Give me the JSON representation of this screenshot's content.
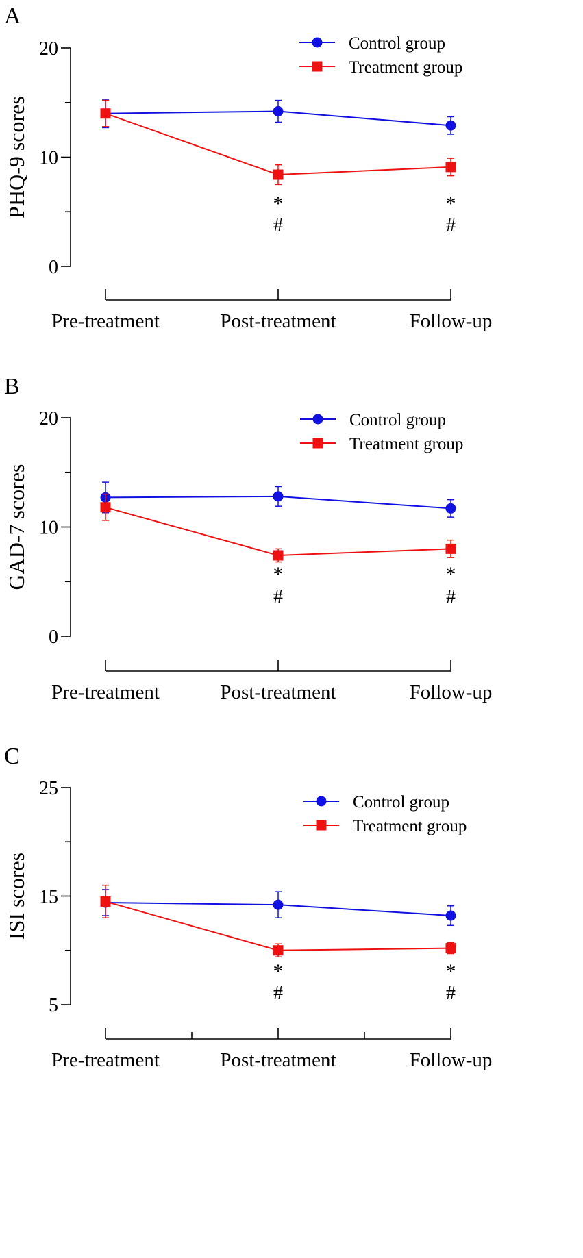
{
  "chart_data": [
    {
      "panel_label": "A",
      "type": "line",
      "ylabel": "PHQ-9 scores",
      "ylim": [
        0,
        20
      ],
      "yticks": [
        0,
        10,
        20
      ],
      "categories": [
        "Pre-treatment",
        "Post-treatment",
        "Follow-up"
      ],
      "series": [
        {
          "name": "Control group",
          "color": "#1010e0",
          "marker": "circle",
          "values": [
            14.0,
            14.2,
            12.9
          ],
          "errors": [
            1.3,
            1.0,
            0.8
          ]
        },
        {
          "name": "Treatment group",
          "color": "#ee1111",
          "marker": "square",
          "values": [
            14.0,
            8.4,
            9.1
          ],
          "errors": [
            1.2,
            0.9,
            0.8
          ]
        }
      ],
      "annotations": [
        {
          "category": "Post-treatment",
          "lines": [
            "*",
            "#"
          ]
        },
        {
          "category": "Follow-up",
          "lines": [
            "*",
            "#"
          ]
        }
      ]
    },
    {
      "panel_label": "B",
      "type": "line",
      "ylabel": "GAD-7 scores",
      "ylim": [
        0,
        20
      ],
      "yticks": [
        0,
        10,
        20
      ],
      "categories": [
        "Pre-treatment",
        "Post-treatment",
        "Follow-up"
      ],
      "series": [
        {
          "name": "Control group",
          "color": "#1010e0",
          "marker": "circle",
          "values": [
            12.7,
            12.8,
            11.7
          ],
          "errors": [
            1.4,
            0.9,
            0.8
          ]
        },
        {
          "name": "Treatment group",
          "color": "#ee1111",
          "marker": "square",
          "values": [
            11.8,
            7.4,
            8.0
          ],
          "errors": [
            1.2,
            0.6,
            0.8
          ]
        }
      ],
      "annotations": [
        {
          "category": "Post-treatment",
          "lines": [
            "*",
            "#"
          ]
        },
        {
          "category": "Follow-up",
          "lines": [
            "*",
            "#"
          ]
        }
      ]
    },
    {
      "panel_label": "C",
      "type": "line",
      "ylabel": "ISI scores",
      "ylim": [
        5,
        25
      ],
      "yticks": [
        5,
        15,
        25
      ],
      "categories": [
        "Pre-treatment",
        "Post-treatment",
        "Follow-up"
      ],
      "series": [
        {
          "name": "Control group",
          "color": "#1010e0",
          "marker": "circle",
          "values": [
            14.4,
            14.2,
            13.2
          ],
          "errors": [
            1.2,
            1.2,
            0.9
          ]
        },
        {
          "name": "Treatment group",
          "color": "#ee1111",
          "marker": "square",
          "values": [
            14.5,
            10.0,
            10.2
          ],
          "errors": [
            1.5,
            0.6,
            0.5
          ]
        }
      ],
      "annotations": [
        {
          "category": "Post-treatment",
          "lines": [
            "*",
            "#"
          ]
        },
        {
          "category": "Follow-up",
          "lines": [
            "*",
            "#"
          ]
        }
      ]
    }
  ]
}
